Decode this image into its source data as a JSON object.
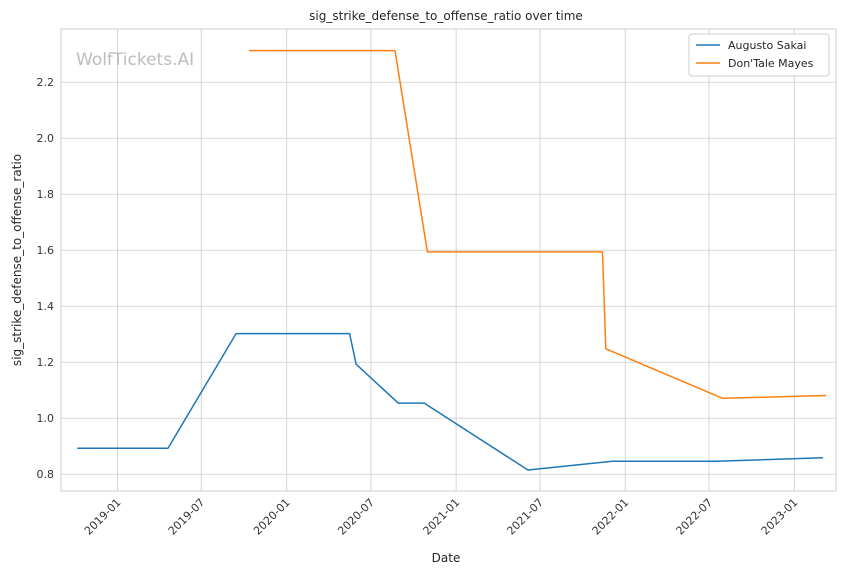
{
  "chart_data": {
    "type": "line",
    "title": "sig_strike_defense_to_offense_ratio over time",
    "xlabel": "Date",
    "ylabel": "sig_strike_defense_to_offense_ratio",
    "watermark": "WolfTickets.AI",
    "x_axis": {
      "type": "date",
      "range": [
        "2018-09-01",
        "2023-04-01"
      ],
      "ticks": [
        "2019-01",
        "2019-07",
        "2020-01",
        "2020-07",
        "2021-01",
        "2021-07",
        "2022-01",
        "2022-07",
        "2023-01"
      ]
    },
    "y_axis": {
      "range": [
        0.74,
        2.39
      ],
      "ticks": [
        0.8,
        1.0,
        1.2,
        1.4,
        1.6,
        1.8,
        2.0,
        2.2
      ],
      "tick_labels": [
        "0.8",
        "1.0",
        "1.2",
        "1.4",
        "1.6",
        "1.8",
        "2.0",
        "2.2"
      ]
    },
    "grid": true,
    "legend_position": "top-right",
    "series": [
      {
        "name": "Augusto Sakai",
        "color": "#1f77b4",
        "points": [
          [
            "2018-10-06",
            0.893
          ],
          [
            "2019-04-20",
            0.893
          ],
          [
            "2019-09-14",
            1.302
          ],
          [
            "2020-05-16",
            1.302
          ],
          [
            "2020-05-30",
            1.193
          ],
          [
            "2020-08-29",
            1.054
          ],
          [
            "2020-10-24",
            1.054
          ],
          [
            "2021-06-05",
            0.815
          ],
          [
            "2021-12-04",
            0.846
          ],
          [
            "2022-07-16",
            0.846
          ],
          [
            "2023-03-04",
            0.859
          ]
        ]
      },
      {
        "name": "Don'Tale Mayes",
        "color": "#ff7f0e",
        "points": [
          [
            "2019-10-12",
            2.313
          ],
          [
            "2020-08-22",
            2.313
          ],
          [
            "2020-10-31",
            1.594
          ],
          [
            "2021-11-13",
            1.594
          ],
          [
            "2021-11-20",
            1.248
          ],
          [
            "2022-07-30",
            1.071
          ],
          [
            "2023-03-11",
            1.081
          ]
        ]
      }
    ]
  }
}
